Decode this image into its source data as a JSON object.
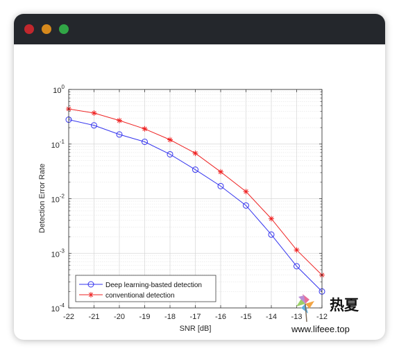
{
  "window": {
    "controls": [
      "close",
      "minimize",
      "maximize"
    ],
    "colors": {
      "close": "#c1272d",
      "minimize": "#d6891c",
      "maximize": "#31a646",
      "titlebar": "#24272c"
    }
  },
  "chart_data": {
    "type": "line",
    "title": "",
    "xlabel": "SNR [dB]",
    "ylabel": "Detection Error Rate",
    "yscale": "log",
    "xlim": [
      -22,
      -12
    ],
    "ylim": [
      0.0001,
      1
    ],
    "x_ticks": [
      "-22",
      "-21",
      "-20",
      "-19",
      "-18",
      "-17",
      "-16",
      "-15",
      "-14",
      "-13",
      "-12"
    ],
    "y_tick_exponents": [
      "0",
      "-1",
      "-2",
      "-3",
      "-4"
    ],
    "y_tick_base": "10",
    "grid": true,
    "minor_grid": true,
    "legend_position": "bottom-left",
    "x": [
      -22,
      -21,
      -20,
      -19,
      -18,
      -17,
      -16,
      -15,
      -14,
      -13,
      -12
    ],
    "series": [
      {
        "name": "Deep learning-basted detection",
        "color": "#3333ee",
        "marker": "circle",
        "values": [
          0.28,
          0.22,
          0.15,
          0.11,
          0.065,
          0.034,
          0.017,
          0.0075,
          0.0022,
          0.00058,
          0.0002
        ]
      },
      {
        "name": "conventional detection",
        "color": "#ee2222",
        "marker": "star",
        "values": [
          0.44,
          0.37,
          0.27,
          0.19,
          0.12,
          0.068,
          0.031,
          0.0135,
          0.0043,
          0.00115,
          0.0004
        ]
      }
    ]
  },
  "watermark": {
    "text_cn": "热夏",
    "url": "www.lifeee.top",
    "icon": "pinwheel-logo-icon"
  }
}
